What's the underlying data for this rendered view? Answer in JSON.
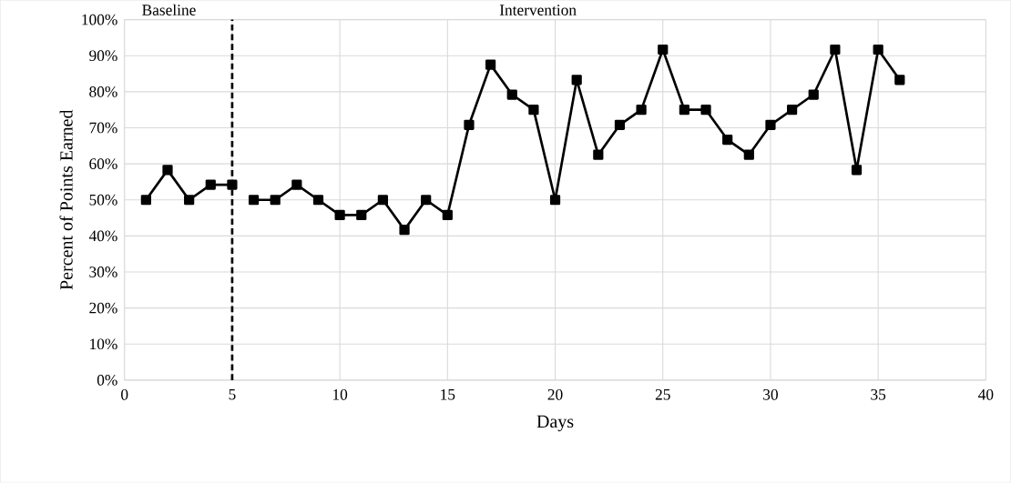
{
  "chart_data": {
    "type": "line",
    "xlabel": "Days",
    "ylabel": "Percent of Points Earned",
    "annotations": [
      "Baseline",
      "Intervention"
    ],
    "series": [
      {
        "color": "#000000",
        "x": [
          1,
          2,
          3,
          4,
          5
        ],
        "values": [
          50,
          58.3,
          50,
          54.2,
          54.2
        ]
      },
      {
        "color": "#000000",
        "x": [
          6,
          7,
          8,
          9,
          10,
          11,
          12,
          13,
          14,
          15,
          16,
          17,
          18,
          19,
          20,
          21,
          22,
          23,
          24,
          25,
          26,
          27,
          28,
          29,
          30,
          31,
          32,
          33,
          34,
          35,
          36
        ],
        "values": [
          50,
          50,
          54.2,
          50,
          45.8,
          45.8,
          50,
          41.7,
          50,
          45.8,
          70.8,
          87.5,
          79.2,
          75,
          50,
          83.3,
          62.5,
          70.8,
          75,
          91.7,
          75,
          75,
          66.7,
          62.5,
          70.8,
          75,
          79.2,
          91.7,
          58.3,
          91.7,
          83.3
        ]
      }
    ],
    "xlim": [
      0,
      40
    ],
    "xticks": [
      0,
      5,
      10,
      15,
      20,
      25,
      30,
      35,
      40
    ],
    "ylim": [
      0,
      100
    ],
    "yticks": [
      {
        "value": 0,
        "label": "0%"
      },
      {
        "value": 10,
        "label": "10%"
      },
      {
        "value": 20,
        "label": "20%"
      },
      {
        "value": 30,
        "label": "30%"
      },
      {
        "value": 40,
        "label": "40%"
      },
      {
        "value": 50,
        "label": "50%"
      },
      {
        "value": 60,
        "label": "60%"
      },
      {
        "value": 70,
        "label": "70%"
      },
      {
        "value": 80,
        "label": "80%"
      },
      {
        "value": 90,
        "label": "90%"
      },
      {
        "value": 100,
        "label": "100%"
      }
    ],
    "ref_lines": [
      {
        "axis": "x",
        "value": 5,
        "color": "#000000",
        "line_style": "dashed"
      }
    ],
    "grid": true,
    "marker": "square",
    "line_style": "solid"
  }
}
